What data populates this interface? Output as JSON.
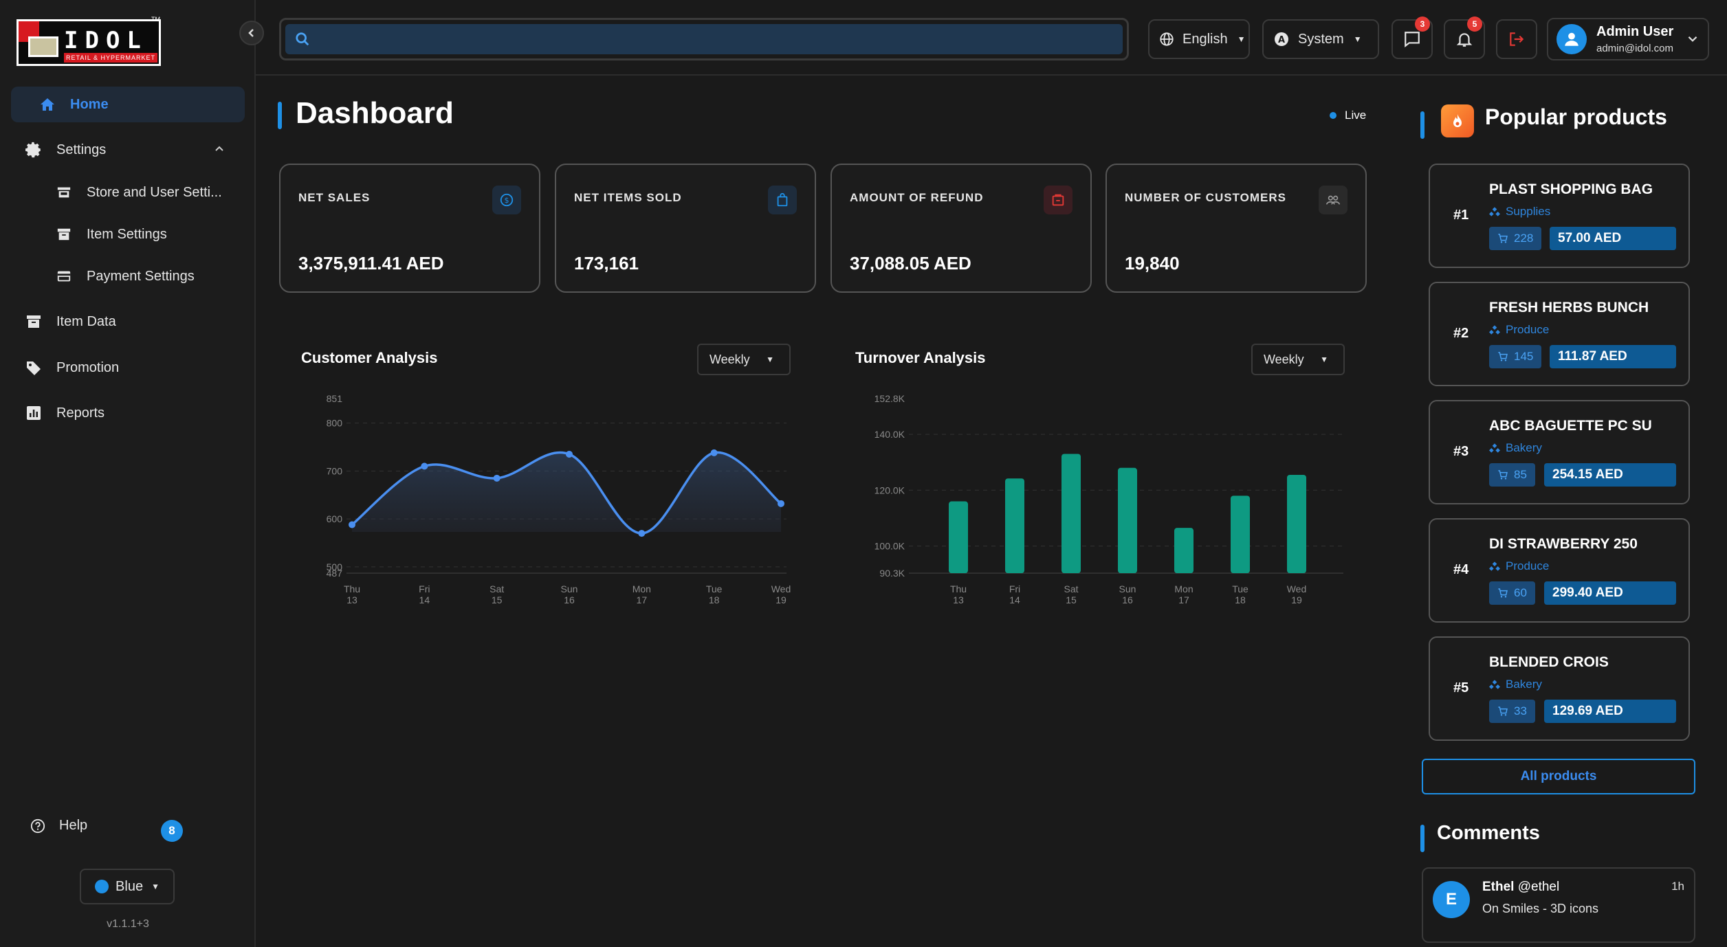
{
  "brand": {
    "logo_text": "IDOL",
    "logo_sub": "RETAIL & HYPERMARKET",
    "logo_tm": "TM"
  },
  "sidebar": {
    "items": [
      {
        "label": "Home",
        "icon": "home-icon",
        "active": true
      },
      {
        "label": "Settings",
        "icon": "gear-icon",
        "expanded": true
      },
      {
        "label": "Store and User Setti...",
        "icon": "store-icon",
        "sub": true
      },
      {
        "label": "Item Settings",
        "icon": "archive-icon",
        "sub": true
      },
      {
        "label": "Payment Settings",
        "icon": "card-icon",
        "sub": true
      },
      {
        "label": "Item Data",
        "icon": "inventory-icon"
      },
      {
        "label": "Promotion",
        "icon": "tag-icon"
      },
      {
        "label": "Reports",
        "icon": "report-icon"
      }
    ],
    "help_label": "Help",
    "help_badge": "8",
    "theme_label": "Blue",
    "version": "v1.1.1+3"
  },
  "topbar": {
    "search": {
      "value": "",
      "placeholder": ""
    },
    "language": "English",
    "theme_mode": "System",
    "messages_badge": "3",
    "notifications_badge": "5",
    "user": {
      "name": "Admin User",
      "email": "admin@idol.com"
    }
  },
  "dashboard": {
    "title": "Dashboard",
    "live_label": "Live",
    "stats": [
      {
        "label": "NET SALES",
        "value": "3,375,911.41 AED",
        "icon": "dollar-icon",
        "color": "#1e90e6"
      },
      {
        "label": "NET ITEMS SOLD",
        "value": "173,161",
        "icon": "bag-icon",
        "color": "#1e90e6"
      },
      {
        "label": "AMOUNT OF REFUND",
        "value": "37,088.05 AED",
        "icon": "refund-icon",
        "color": "#e53935"
      },
      {
        "label": "NUMBER OF CUSTOMERS",
        "value": "19,840",
        "icon": "users-icon",
        "color": "#9a9a9a"
      }
    ],
    "customer_analysis": {
      "title": "Customer Analysis",
      "period": "Weekly"
    },
    "turnover_analysis": {
      "title": "Turnover Analysis",
      "period": "Weekly"
    }
  },
  "chart_data": [
    {
      "type": "area",
      "title": "Customer Analysis",
      "categories": [
        "Thu 13",
        "Fri 14",
        "Sat 15",
        "Sun 16",
        "Mon 17",
        "Tue 18",
        "Wed 19"
      ],
      "values": [
        588,
        710,
        685,
        735,
        570,
        738,
        632
      ],
      "ylim": [
        487,
        851
      ],
      "yticks": [
        "851",
        "800",
        "700",
        "600",
        "500",
        "487"
      ],
      "grid": true,
      "color": "#4a8ff0"
    },
    {
      "type": "bar",
      "title": "Turnover Analysis",
      "categories": [
        "Thu 13",
        "Fri 14",
        "Sat 15",
        "Sun 16",
        "Mon 17",
        "Tue 18",
        "Wed 19"
      ],
      "values": [
        116000,
        124200,
        133000,
        128000,
        106500,
        118000,
        125500
      ],
      "ylim": [
        90300,
        152800
      ],
      "yticks": [
        "152.8K",
        "140.0K",
        "120.0K",
        "100.0K",
        "90.3K"
      ],
      "grid": true,
      "color": "#0e9a82"
    }
  ],
  "popular": {
    "title": "Popular products",
    "products": [
      {
        "rank": "#1",
        "name": "PLAST SHOPPING BAG",
        "category": "Supplies",
        "qty": "228",
        "price": "57.00 AED"
      },
      {
        "rank": "#2",
        "name": "FRESH HERBS BUNCH",
        "category": "Produce",
        "qty": "145",
        "price": "111.87 AED"
      },
      {
        "rank": "#3",
        "name": "ABC BAGUETTE PC SU",
        "category": "Bakery",
        "qty": "85",
        "price": "254.15 AED"
      },
      {
        "rank": "#4",
        "name": "DI STRAWBERRY 250",
        "category": "Produce",
        "qty": "60",
        "price": "299.40 AED"
      },
      {
        "rank": "#5",
        "name": "BLENDED CROIS",
        "category": "Bakery",
        "qty": "33",
        "price": "129.69 AED"
      }
    ],
    "all_label": "All products"
  },
  "comments": {
    "title": "Comments",
    "items": [
      {
        "initial": "E",
        "name": "Ethel",
        "handle": "@ethel",
        "text": "On Smiles - 3D icons",
        "time": "1h"
      }
    ]
  }
}
